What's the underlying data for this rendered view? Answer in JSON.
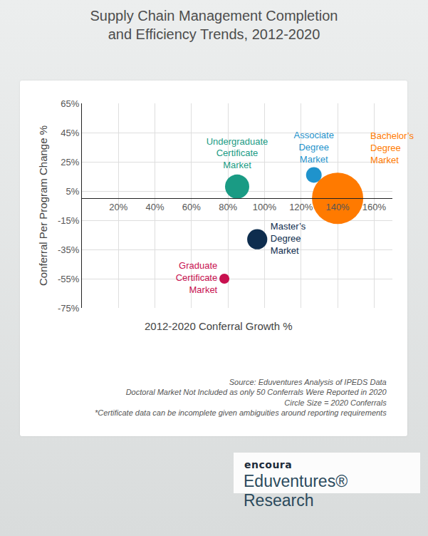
{
  "chart_data": {
    "type": "scatter",
    "title": "Supply Chain Management Completion\nand Efficiency Trends, 2012-2020",
    "xlabel": "2012-2020 Conferral Growth %",
    "ylabel": "Conferral Per Program Change %",
    "labels": [
      "Undergraduate\nCertificate\nMarket",
      "Associate\nDegree\nMarket",
      "Bachelor’s\nDegree\nMarket",
      "Master’s\nDegree\nMarket",
      "Graduate\nCertificate\nMarket"
    ],
    "x": [
      85,
      127,
      140,
      96,
      78
    ],
    "values": [
      8,
      16,
      0,
      -28,
      -55
    ],
    "sizes": [
      1450,
      600,
      6500,
      1000,
      250
    ],
    "colors": [
      "#1a9b84",
      "#1f93cc",
      "#ff7a00",
      "#0e2d4e",
      "#c8104f"
    ],
    "xlim": [
      0,
      170
    ],
    "xticks": [
      {
        "value": 20,
        "label": "20%"
      },
      {
        "value": 40,
        "label": "40%"
      },
      {
        "value": 60,
        "label": "60%"
      },
      {
        "value": 80,
        "label": "80%"
      },
      {
        "value": 100,
        "label": "100%"
      },
      {
        "value": 120,
        "label": "120%"
      },
      {
        "value": 140,
        "label": "140%"
      },
      {
        "value": 160,
        "label": "160%"
      }
    ],
    "ylim": [
      -75,
      65
    ],
    "yticks": [
      {
        "value": -75,
        "label": "-75%"
      },
      {
        "value": -55,
        "label": "-55%"
      },
      {
        "value": -35,
        "label": "-35%"
      },
      {
        "value": -15,
        "label": "-15%"
      },
      {
        "value": 5,
        "label": "5%"
      },
      {
        "value": 25,
        "label": "25%"
      },
      {
        "value": 45,
        "label": "45%"
      },
      {
        "value": 65,
        "label": "65%"
      }
    ],
    "grid": true,
    "notes": [
      "Source: Eduventures Analysis of IPEDS Data",
      "Doctoral Market Not Included as only 50 Conferrals Were Reported in 2020",
      "Circle Size = 2020 Conferrals",
      "*Certificate data can be incomplete given ambiguities around reporting requirements"
    ],
    "logo": {
      "brand": "encoura",
      "name": "Eduventures® Research"
    }
  }
}
